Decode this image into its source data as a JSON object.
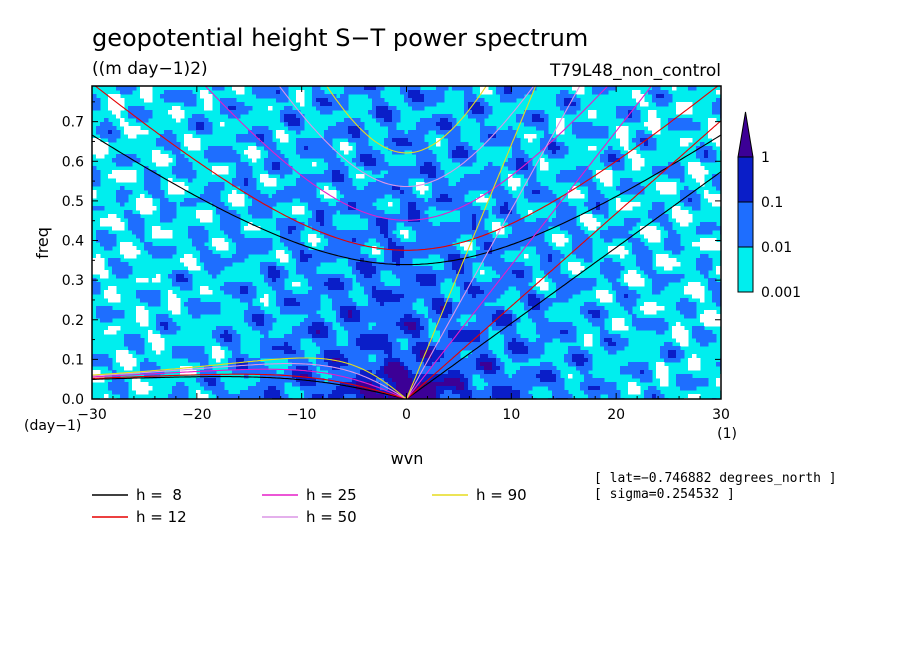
{
  "chart_data": {
    "type": "heatmap",
    "title": "geopotential height S−T power spectrum",
    "units": "((m day−1)2)",
    "experiment": "T79L48_non_control",
    "xlabel": "wvn",
    "ylabel": "freq",
    "x_unit": "(1)",
    "y_unit": "(day−1)",
    "xlim": [
      -30,
      30
    ],
    "ylim": [
      0,
      0.79
    ],
    "x_ticks": [
      -30,
      -20,
      -10,
      0,
      10,
      20,
      30
    ],
    "y_ticks": [
      0.0,
      0.1,
      0.2,
      0.3,
      0.4,
      0.5,
      0.6,
      0.7
    ],
    "x_tick_labels": [
      "−30",
      "−20",
      "−10",
      "0",
      "10",
      "20",
      "30"
    ],
    "y_tick_labels": [
      "0.0",
      "0.1",
      "0.2",
      "0.3",
      "0.4",
      "0.5",
      "0.6",
      "0.7"
    ],
    "contour_levels": [
      0.001,
      0.01,
      0.1,
      1
    ],
    "colorbar_labels": [
      "1",
      "0.1",
      "0.01",
      "0.001"
    ],
    "colorbar_colors": [
      "#00eeee",
      "#1e6eff",
      "#0a1ec8",
      "#3c0096"
    ],
    "dispersion_curves": [
      {
        "label": "h =  8",
        "h": 8,
        "color": "#000000"
      },
      {
        "label": "h = 12",
        "h": 12,
        "color": "#e60000"
      },
      {
        "label": "h = 25",
        "h": 25,
        "color": "#e61ec8"
      },
      {
        "label": "h = 50",
        "h": 50,
        "color": "#dc96e6"
      },
      {
        "label": "h = 90",
        "h": 90,
        "color": "#e6dc1e"
      }
    ],
    "annotations": [
      "[ lat=−0.746882 degrees_north ]",
      "[ sigma=0.254532 ]"
    ]
  }
}
